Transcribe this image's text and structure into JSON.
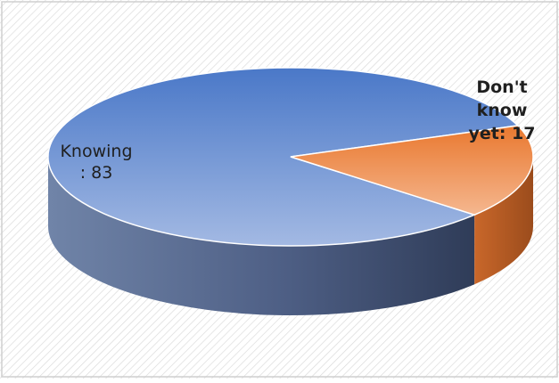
{
  "chart_data": {
    "type": "pie",
    "style": "3d",
    "title": "",
    "slices": [
      {
        "name": "Knowing",
        "value": 83,
        "color": "#4472c4",
        "label_lines": [
          "Knowing",
          ": 83"
        ]
      },
      {
        "name": "Don't know yet",
        "value": 17,
        "color": "#ed7d31",
        "label_lines": [
          "Don't",
          "know",
          "yet: 17"
        ]
      }
    ],
    "legend": "none",
    "background": "hatched"
  }
}
